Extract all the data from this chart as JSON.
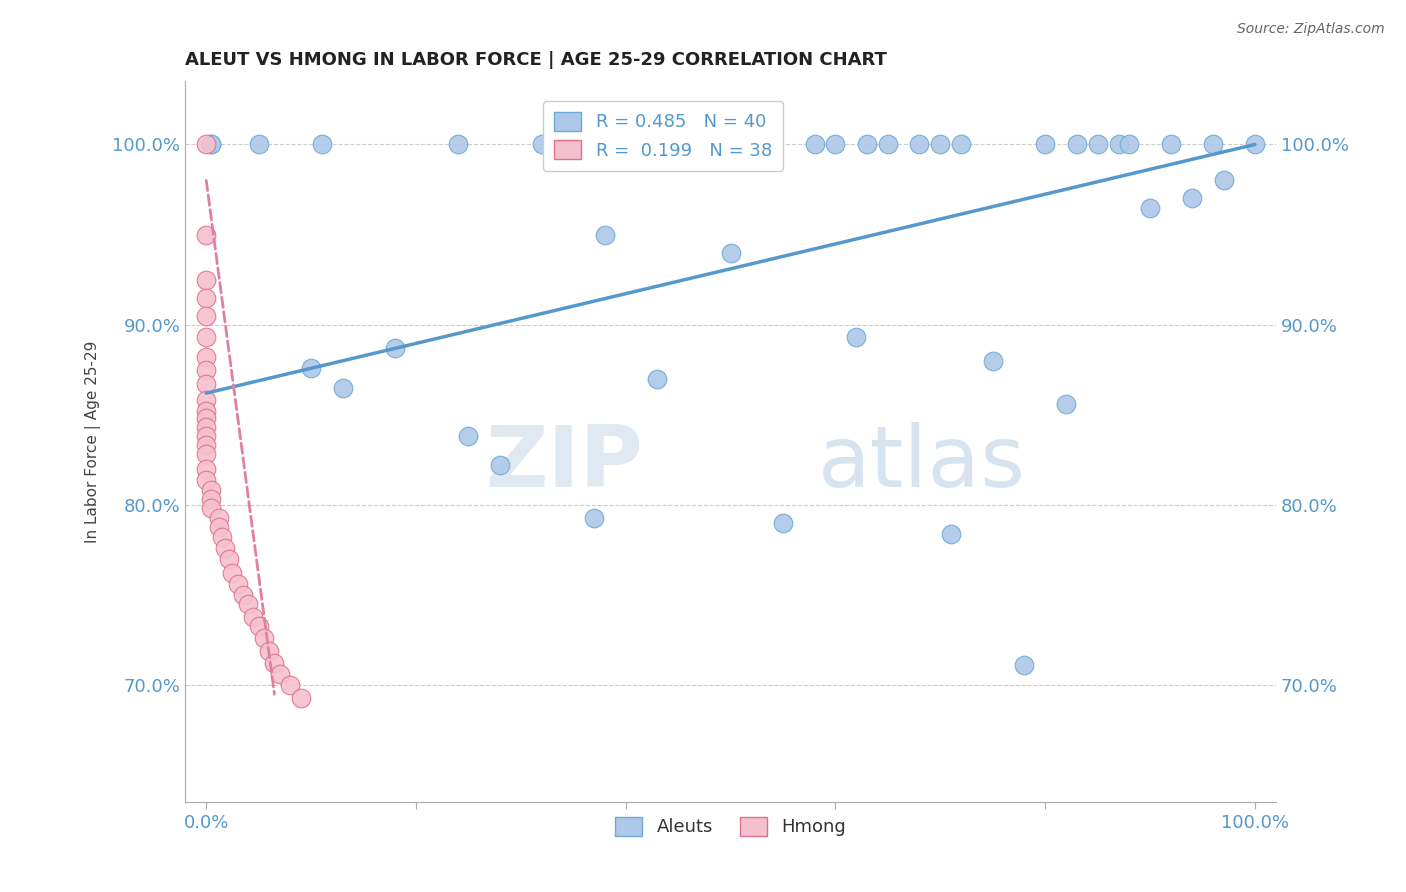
{
  "title": "ALEUT VS HMONG IN LABOR FORCE | AGE 25-29 CORRELATION CHART",
  "source": "Source: ZipAtlas.com",
  "ylabel": "In Labor Force | Age 25-29",
  "xlim": [
    -0.02,
    1.02
  ],
  "ylim": [
    0.635,
    1.035
  ],
  "y_ticks": [
    0.7,
    0.8,
    0.9,
    1.0
  ],
  "y_tick_labels": [
    "70.0%",
    "80.0%",
    "90.0%",
    "100.0%"
  ],
  "x_ticks": [
    0.0,
    0.2,
    0.4,
    0.6,
    0.8,
    1.0
  ],
  "x_tick_labels": [
    "0.0%",
    "",
    "",
    "",
    "",
    "100.0%"
  ],
  "aleuts_R": 0.485,
  "aleuts_N": 40,
  "hmong_R": 0.199,
  "hmong_N": 38,
  "aleuts_color": "#adc8e8",
  "aleuts_edge": "#6aaad4",
  "hmong_color": "#f5c0ce",
  "hmong_edge": "#e07090",
  "trendline_aleuts_color": "#5599cc",
  "trendline_hmong_color": "#e080a0",
  "background_color": "#ffffff",
  "watermark_zip": "ZIP",
  "watermark_atlas": "atlas",
  "aleuts_x": [
    0.005,
    0.005,
    0.05,
    0.1,
    0.11,
    0.13,
    0.18,
    0.24,
    0.25,
    0.28,
    0.32,
    0.37,
    0.38,
    0.4,
    0.43,
    0.5,
    0.55,
    0.58,
    0.6,
    0.62,
    0.63,
    0.65,
    0.68,
    0.7,
    0.71,
    0.72,
    0.75,
    0.78,
    0.8,
    0.82,
    0.83,
    0.85,
    0.87,
    0.88,
    0.9,
    0.92,
    0.94,
    0.96,
    0.97,
    1.0
  ],
  "aleuts_y": [
    1.0,
    1.0,
    1.0,
    0.876,
    1.0,
    0.865,
    0.887,
    1.0,
    0.838,
    0.822,
    1.0,
    0.793,
    0.95,
    1.0,
    0.87,
    0.94,
    0.79,
    1.0,
    1.0,
    0.893,
    1.0,
    1.0,
    1.0,
    1.0,
    0.784,
    1.0,
    0.88,
    0.711,
    1.0,
    0.856,
    1.0,
    1.0,
    1.0,
    1.0,
    0.965,
    1.0,
    0.97,
    1.0,
    0.98,
    1.0
  ],
  "hmong_x": [
    0.0,
    0.0,
    0.0,
    0.0,
    0.0,
    0.0,
    0.0,
    0.0,
    0.0,
    0.0,
    0.0,
    0.0,
    0.0,
    0.0,
    0.0,
    0.0,
    0.0,
    0.0,
    0.005,
    0.005,
    0.005,
    0.012,
    0.012,
    0.015,
    0.018,
    0.022,
    0.025,
    0.03,
    0.035,
    0.04,
    0.045,
    0.05,
    0.055,
    0.06,
    0.065,
    0.07,
    0.08,
    0.09
  ],
  "hmong_y": [
    1.0,
    0.95,
    0.925,
    0.915,
    0.905,
    0.893,
    0.882,
    0.875,
    0.867,
    0.858,
    0.852,
    0.848,
    0.843,
    0.838,
    0.833,
    0.828,
    0.82,
    0.814,
    0.808,
    0.803,
    0.798,
    0.793,
    0.788,
    0.782,
    0.776,
    0.77,
    0.762,
    0.756,
    0.75,
    0.745,
    0.738,
    0.733,
    0.726,
    0.719,
    0.712,
    0.706,
    0.7,
    0.693
  ],
  "trendline_aleuts_x0": 0.0,
  "trendline_aleuts_y0": 0.862,
  "trendline_aleuts_x1": 1.0,
  "trendline_aleuts_y1": 1.0,
  "trendline_hmong_x0": 0.0,
  "trendline_hmong_y0": 0.98,
  "trendline_hmong_x1": 0.065,
  "trendline_hmong_y1": 0.695
}
